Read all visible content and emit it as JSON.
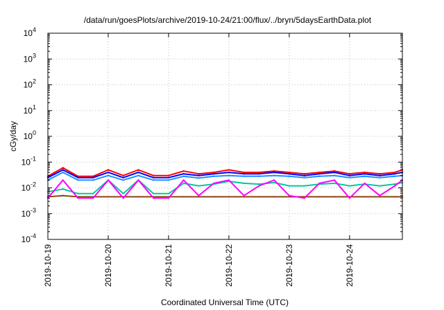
{
  "chart_data": {
    "type": "line",
    "title": "/data/run/goesPlots/archive/2019-10-24/21:00/flux/../bryn/5daysEarthData.plot",
    "xlabel": "Coordinated Universal Time (UTC)",
    "ylabel": "cGy/day",
    "yscale": "log",
    "ylim": [
      0.0001,
      10000
    ],
    "xlim": [
      "2019-10-19T00:00",
      "2019-10-24T21:00"
    ],
    "grid": true,
    "legend": "none",
    "y_ticks": [
      {
        "base": "10",
        "exp": "-4",
        "value": 0.0001
      },
      {
        "base": "10",
        "exp": "-3",
        "value": 0.001
      },
      {
        "base": "10",
        "exp": "-2",
        "value": 0.01
      },
      {
        "base": "10",
        "exp": "-1",
        "value": 0.1
      },
      {
        "base": "10",
        "exp": "0",
        "value": 1
      },
      {
        "base": "10",
        "exp": "1",
        "value": 10
      },
      {
        "base": "10",
        "exp": "2",
        "value": 100
      },
      {
        "base": "10",
        "exp": "3",
        "value": 1000
      },
      {
        "base": "10",
        "exp": "4",
        "value": 10000
      }
    ],
    "x_ticks": [
      "2019-10-19",
      "2019-10-20",
      "2019-10-21",
      "2019-10-22",
      "2019-10-23",
      "2019-10-24"
    ],
    "series": [
      {
        "color": "#ff0000",
        "x": [
          "2019-10-19T00:00",
          "2019-10-19T06:00",
          "2019-10-19T12:00",
          "2019-10-19T18:00",
          "2019-10-20T00:00",
          "2019-10-20T06:00",
          "2019-10-20T12:00",
          "2019-10-20T18:00",
          "2019-10-21T00:00",
          "2019-10-21T06:00",
          "2019-10-21T12:00",
          "2019-10-21T18:00",
          "2019-10-22T00:00",
          "2019-10-22T06:00",
          "2019-10-22T12:00",
          "2019-10-22T18:00",
          "2019-10-23T00:00",
          "2019-10-23T06:00",
          "2019-10-23T12:00",
          "2019-10-23T18:00",
          "2019-10-24T00:00",
          "2019-10-24T06:00",
          "2019-10-24T12:00",
          "2019-10-24T18:00",
          "2019-10-24T21:00"
        ],
        "values": [
          0.028,
          0.06,
          0.028,
          0.028,
          0.05,
          0.03,
          0.05,
          0.03,
          0.03,
          0.045,
          0.035,
          0.04,
          0.05,
          0.04,
          0.04,
          0.045,
          0.04,
          0.035,
          0.04,
          0.045,
          0.035,
          0.04,
          0.035,
          0.04,
          0.05
        ]
      },
      {
        "color": "#0000ff",
        "x": [
          "2019-10-19T00:00",
          "2019-10-19T06:00",
          "2019-10-19T12:00",
          "2019-10-19T18:00",
          "2019-10-20T00:00",
          "2019-10-20T06:00",
          "2019-10-20T12:00",
          "2019-10-20T18:00",
          "2019-10-21T00:00",
          "2019-10-21T06:00",
          "2019-10-21T12:00",
          "2019-10-21T18:00",
          "2019-10-22T00:00",
          "2019-10-22T06:00",
          "2019-10-22T12:00",
          "2019-10-22T18:00",
          "2019-10-23T00:00",
          "2019-10-23T06:00",
          "2019-10-23T12:00",
          "2019-10-23T18:00",
          "2019-10-24T00:00",
          "2019-10-24T06:00",
          "2019-10-24T12:00",
          "2019-10-24T18:00",
          "2019-10-24T21:00"
        ],
        "values": [
          0.025,
          0.05,
          0.025,
          0.025,
          0.04,
          0.025,
          0.04,
          0.025,
          0.025,
          0.035,
          0.03,
          0.035,
          0.04,
          0.035,
          0.035,
          0.04,
          0.035,
          0.03,
          0.035,
          0.04,
          0.03,
          0.035,
          0.03,
          0.035,
          0.04
        ]
      },
      {
        "color": "#1e90ff",
        "x": [
          "2019-10-19T00:00",
          "2019-10-19T06:00",
          "2019-10-19T12:00",
          "2019-10-19T18:00",
          "2019-10-20T00:00",
          "2019-10-20T06:00",
          "2019-10-20T12:00",
          "2019-10-20T18:00",
          "2019-10-21T00:00",
          "2019-10-21T06:00",
          "2019-10-21T12:00",
          "2019-10-21T18:00",
          "2019-10-22T00:00",
          "2019-10-22T06:00",
          "2019-10-22T12:00",
          "2019-10-22T18:00",
          "2019-10-23T00:00",
          "2019-10-23T06:00",
          "2019-10-23T12:00",
          "2019-10-23T18:00",
          "2019-10-24T00:00",
          "2019-10-24T06:00",
          "2019-10-24T12:00",
          "2019-10-24T18:00",
          "2019-10-24T21:00"
        ],
        "values": [
          0.02,
          0.04,
          0.02,
          0.02,
          0.03,
          0.02,
          0.03,
          0.02,
          0.02,
          0.028,
          0.024,
          0.028,
          0.03,
          0.028,
          0.028,
          0.03,
          0.028,
          0.025,
          0.028,
          0.03,
          0.025,
          0.028,
          0.025,
          0.028,
          0.03
        ]
      },
      {
        "color": "#00c8a0",
        "x": [
          "2019-10-19T00:00",
          "2019-10-19T06:00",
          "2019-10-19T12:00",
          "2019-10-19T18:00",
          "2019-10-20T00:00",
          "2019-10-20T06:00",
          "2019-10-20T12:00",
          "2019-10-20T18:00",
          "2019-10-21T00:00",
          "2019-10-21T06:00",
          "2019-10-21T12:00",
          "2019-10-21T18:00",
          "2019-10-22T00:00",
          "2019-10-22T06:00",
          "2019-10-22T12:00",
          "2019-10-22T18:00",
          "2019-10-23T00:00",
          "2019-10-23T06:00",
          "2019-10-23T12:00",
          "2019-10-23T18:00",
          "2019-10-24T00:00",
          "2019-10-24T06:00",
          "2019-10-24T12:00",
          "2019-10-24T18:00",
          "2019-10-24T21:00"
        ],
        "values": [
          0.007,
          0.009,
          0.006,
          0.006,
          0.02,
          0.006,
          0.02,
          0.006,
          0.006,
          0.015,
          0.012,
          0.014,
          0.018,
          0.015,
          0.014,
          0.016,
          0.012,
          0.012,
          0.014,
          0.015,
          0.012,
          0.014,
          0.012,
          0.014,
          0.016
        ]
      },
      {
        "color": "#8b4513",
        "x": [
          "2019-10-19T00:00",
          "2019-10-19T06:00",
          "2019-10-19T12:00",
          "2019-10-19T18:00",
          "2019-10-20T00:00",
          "2019-10-20T06:00",
          "2019-10-20T12:00",
          "2019-10-20T18:00",
          "2019-10-21T00:00",
          "2019-10-21T06:00",
          "2019-10-21T12:00",
          "2019-10-21T18:00",
          "2019-10-22T00:00",
          "2019-10-22T06:00",
          "2019-10-22T12:00",
          "2019-10-22T18:00",
          "2019-10-23T00:00",
          "2019-10-23T06:00",
          "2019-10-23T12:00",
          "2019-10-23T18:00",
          "2019-10-24T00:00",
          "2019-10-24T06:00",
          "2019-10-24T12:00",
          "2019-10-24T18:00",
          "2019-10-24T21:00"
        ],
        "values": [
          0.0045,
          0.005,
          0.0045,
          0.0045,
          0.0045,
          0.0045,
          0.0045,
          0.0045,
          0.0045,
          0.0045,
          0.0045,
          0.0045,
          0.0045,
          0.0045,
          0.0045,
          0.0045,
          0.0045,
          0.0045,
          0.0045,
          0.0045,
          0.0045,
          0.0045,
          0.0045,
          0.0045,
          0.0045
        ]
      },
      {
        "color": "#ff00ff",
        "x": [
          "2019-10-19T00:00",
          "2019-10-19T06:00",
          "2019-10-19T12:00",
          "2019-10-19T18:00",
          "2019-10-20T00:00",
          "2019-10-20T06:00",
          "2019-10-20T12:00",
          "2019-10-20T18:00",
          "2019-10-21T00:00",
          "2019-10-21T06:00",
          "2019-10-21T12:00",
          "2019-10-21T18:00",
          "2019-10-22T00:00",
          "2019-10-22T06:00",
          "2019-10-22T12:00",
          "2019-10-22T18:00",
          "2019-10-23T00:00",
          "2019-10-23T06:00",
          "2019-10-23T12:00",
          "2019-10-23T18:00",
          "2019-10-24T00:00",
          "2019-10-24T06:00",
          "2019-10-24T12:00",
          "2019-10-24T18:00",
          "2019-10-24T21:00"
        ],
        "values": [
          0.004,
          0.02,
          0.004,
          0.004,
          0.02,
          0.004,
          0.02,
          0.004,
          0.004,
          0.02,
          0.005,
          0.015,
          0.02,
          0.005,
          0.012,
          0.02,
          0.005,
          0.004,
          0.015,
          0.02,
          0.004,
          0.015,
          0.005,
          0.012,
          0.02
        ]
      }
    ]
  }
}
